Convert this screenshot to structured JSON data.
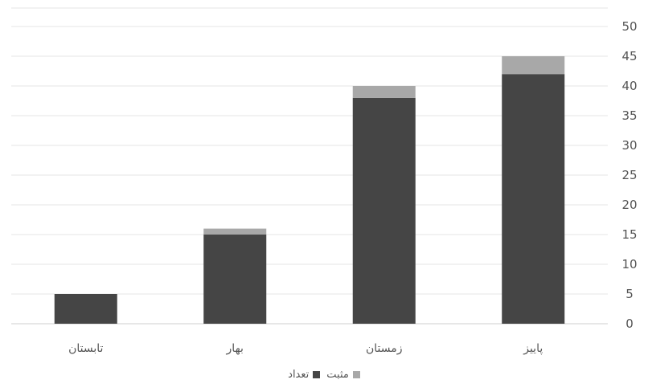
{
  "chart_data": {
    "type": "bar",
    "stacked": true,
    "categories": [
      "تابستان",
      "بهار",
      "زمستان",
      "پاییز"
    ],
    "series": [
      {
        "name": "تعداد",
        "values": [
          5,
          15,
          38,
          42
        ],
        "color": "#454545"
      },
      {
        "name": "مثبت",
        "values": [
          0,
          1,
          2,
          3
        ],
        "color": "#a8a8a8"
      }
    ],
    "ylim": [
      0,
      50
    ],
    "yticks": [
      0,
      5,
      10,
      15,
      20,
      25,
      30,
      35,
      40,
      45,
      50
    ],
    "y_axis_side": "right",
    "grid": true,
    "legend_position": "bottom",
    "title": "",
    "xlabel": "",
    "ylabel": ""
  }
}
